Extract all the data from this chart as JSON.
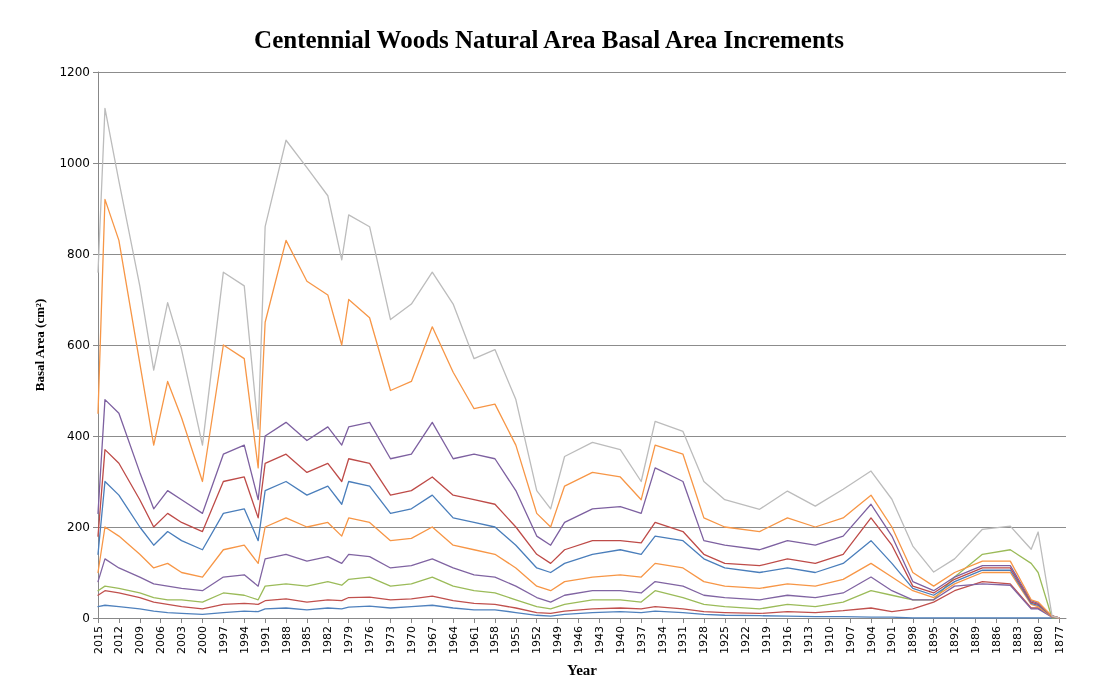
{
  "chart_data": {
    "type": "line",
    "title": "Centennial Woods Natural Area Basal Area Increments",
    "xlabel": "Year",
    "ylabel": "Basal Area (cm²)",
    "x": [
      2015,
      2014,
      2012,
      2009,
      2007,
      2005,
      2003,
      2000,
      1997,
      1994,
      1992,
      1991,
      1988,
      1985,
      1982,
      1980,
      1979,
      1976,
      1973,
      1970,
      1967,
      1964,
      1961,
      1958,
      1955,
      1952,
      1950,
      1948,
      1944,
      1940,
      1937,
      1935,
      1931,
      1928,
      1925,
      1920,
      1916,
      1912,
      1908,
      1904,
      1901,
      1898,
      1895,
      1892,
      1888,
      1884,
      1881,
      1880,
      1878,
      1877
    ],
    "xlim": [
      2015,
      1876
    ],
    "xticks": [
      2015,
      2012,
      2009,
      2006,
      2003,
      2000,
      1997,
      1994,
      1991,
      1988,
      1985,
      1982,
      1979,
      1976,
      1973,
      1970,
      1967,
      1964,
      1961,
      1958,
      1955,
      1952,
      1949,
      1946,
      1943,
      1940,
      1937,
      1934,
      1931,
      1928,
      1925,
      1922,
      1919,
      1916,
      1913,
      1910,
      1907,
      1904,
      1901,
      1898,
      1895,
      1892,
      1889,
      1886,
      1883,
      1880,
      1877
    ],
    "ylim": [
      0,
      1200
    ],
    "yticks": [
      0,
      200,
      400,
      600,
      800,
      1000,
      1200
    ],
    "grid": "y",
    "marker": "none",
    "line_style": "solid",
    "series": [
      {
        "color": "#4f81bd",
        "values": [
          25,
          28,
          25,
          20,
          15,
          12,
          10,
          8,
          12,
          15,
          14,
          20,
          22,
          18,
          22,
          20,
          24,
          26,
          22,
          25,
          28,
          22,
          18,
          18,
          12,
          6,
          4,
          8,
          12,
          14,
          12,
          15,
          12,
          8,
          6,
          5,
          4,
          3,
          3,
          2,
          2,
          0,
          0,
          0,
          0,
          0,
          0,
          0,
          0,
          0
        ]
      },
      {
        "color": "#c0504d",
        "values": [
          50,
          60,
          55,
          45,
          35,
          30,
          25,
          20,
          30,
          32,
          30,
          38,
          42,
          35,
          40,
          38,
          45,
          46,
          40,
          42,
          48,
          38,
          32,
          30,
          22,
          12,
          10,
          15,
          20,
          22,
          20,
          25,
          20,
          14,
          12,
          10,
          14,
          12,
          16,
          22,
          14,
          20,
          35,
          60,
          80,
          75,
          22,
          22,
          5,
          0
        ]
      },
      {
        "color": "#9bbb59",
        "values": [
          60,
          70,
          65,
          55,
          45,
          40,
          40,
          35,
          55,
          50,
          40,
          70,
          75,
          70,
          80,
          72,
          85,
          90,
          70,
          75,
          90,
          70,
          60,
          55,
          40,
          25,
          20,
          30,
          40,
          40,
          35,
          60,
          45,
          30,
          25,
          20,
          30,
          25,
          35,
          60,
          50,
          40,
          40,
          90,
          140,
          150,
          120,
          100,
          0,
          0
        ]
      },
      {
        "color": "#8064a2",
        "values": [
          80,
          130,
          110,
          90,
          75,
          70,
          65,
          60,
          90,
          95,
          70,
          130,
          140,
          125,
          135,
          120,
          140,
          135,
          110,
          115,
          130,
          110,
          95,
          90,
          70,
          45,
          35,
          50,
          60,
          60,
          55,
          80,
          70,
          50,
          45,
          40,
          50,
          45,
          55,
          90,
          60,
          40,
          40,
          70,
          75,
          72,
          20,
          20,
          2,
          0
        ]
      },
      {
        "color": "#f79646",
        "values": [
          100,
          200,
          180,
          140,
          110,
          120,
          100,
          90,
          150,
          160,
          120,
          200,
          220,
          200,
          210,
          180,
          220,
          210,
          170,
          175,
          200,
          160,
          150,
          140,
          110,
          70,
          60,
          80,
          90,
          95,
          90,
          120,
          110,
          80,
          70,
          65,
          75,
          70,
          85,
          120,
          90,
          60,
          45,
          75,
          100,
          100,
          30,
          25,
          3,
          0
        ]
      },
      {
        "color": "#4a7ebb",
        "values": [
          140,
          300,
          270,
          200,
          160,
          190,
          170,
          150,
          230,
          240,
          170,
          280,
          300,
          270,
          290,
          250,
          300,
          290,
          230,
          240,
          270,
          220,
          210,
          200,
          160,
          110,
          100,
          120,
          140,
          150,
          140,
          180,
          170,
          130,
          110,
          100,
          110,
          100,
          120,
          170,
          120,
          65,
          50,
          80,
          105,
          105,
          32,
          28,
          4,
          0
        ]
      },
      {
        "color": "#be4b48",
        "values": [
          180,
          370,
          340,
          260,
          200,
          230,
          210,
          190,
          300,
          310,
          220,
          340,
          360,
          320,
          340,
          300,
          350,
          340,
          270,
          280,
          310,
          270,
          260,
          250,
          200,
          140,
          120,
          150,
          170,
          170,
          165,
          210,
          190,
          140,
          120,
          115,
          130,
          120,
          140,
          220,
          160,
          70,
          55,
          85,
          110,
          110,
          35,
          30,
          4,
          0
        ]
      },
      {
        "color": "#7d60a0",
        "values": [
          230,
          480,
          450,
          320,
          240,
          280,
          260,
          230,
          360,
          380,
          260,
          400,
          430,
          390,
          420,
          380,
          420,
          430,
          350,
          360,
          430,
          350,
          360,
          350,
          280,
          180,
          160,
          210,
          240,
          245,
          230,
          330,
          300,
          170,
          160,
          150,
          170,
          160,
          180,
          250,
          180,
          80,
          60,
          90,
          115,
          115,
          38,
          32,
          4,
          0
        ]
      },
      {
        "color": "#f79646",
        "values": [
          450,
          920,
          830,
          560,
          380,
          520,
          440,
          300,
          600,
          570,
          330,
          650,
          830,
          740,
          710,
          600,
          700,
          660,
          500,
          520,
          640,
          540,
          460,
          470,
          380,
          230,
          200,
          290,
          320,
          310,
          260,
          380,
          360,
          220,
          200,
          190,
          220,
          200,
          220,
          270,
          200,
          100,
          70,
          100,
          125,
          125,
          40,
          35,
          4,
          0
        ]
      },
      {
        "color": "#bcbcbc",
        "values": [
          760,
          1120,
          960,
          730,
          545,
          693,
          590,
          380,
          760,
          730,
          415,
          860,
          1050,
          990,
          928,
          787,
          886,
          860,
          656,
          690,
          760,
          690,
          570,
          590,
          480,
          280,
          240,
          355,
          386,
          370,
          300,
          432,
          410,
          300,
          260,
          239,
          279,
          246,
          283,
          323,
          261,
          158,
          101,
          130,
          195,
          202,
          151,
          189,
          4,
          0
        ]
      }
    ]
  }
}
